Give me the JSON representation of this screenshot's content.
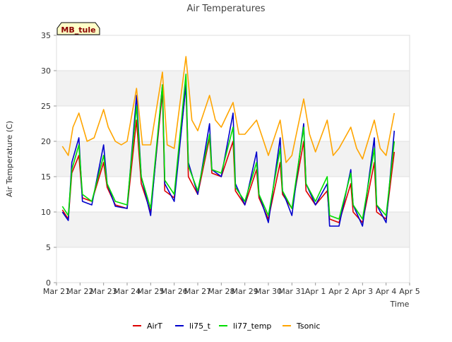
{
  "chart_data": {
    "type": "line",
    "title": "Air Temperatures",
    "xlabel": "Time",
    "ylabel": "Air Temperature (C)",
    "site_label": "MB_tule",
    "ylim": [
      0,
      35
    ],
    "yticks": [
      0,
      5,
      10,
      15,
      20,
      25,
      30,
      35
    ],
    "xlim": [
      0,
      15
    ],
    "xticks": [
      {
        "pos": 0,
        "label": "Mar 21"
      },
      {
        "pos": 1,
        "label": "Mar 22"
      },
      {
        "pos": 2,
        "label": "Mar 23"
      },
      {
        "pos": 3,
        "label": "Mar 24"
      },
      {
        "pos": 4,
        "label": "Mar 25"
      },
      {
        "pos": 5,
        "label": "Mar 26"
      },
      {
        "pos": 6,
        "label": "Mar 27"
      },
      {
        "pos": 7,
        "label": "Mar 28"
      },
      {
        "pos": 8,
        "label": "Mar 29"
      },
      {
        "pos": 9,
        "label": "Mar 30"
      },
      {
        "pos": 10,
        "label": "Mar 31"
      },
      {
        "pos": 11,
        "label": "Apr 1"
      },
      {
        "pos": 12,
        "label": "Apr 2"
      },
      {
        "pos": 13,
        "label": "Apr 3"
      },
      {
        "pos": 14,
        "label": "Apr 4"
      },
      {
        "pos": 15,
        "label": "Apr 5"
      }
    ],
    "grid": true,
    "legend_position": "bottom",
    "x_units": "days after Mar 21 00:00",
    "series": [
      {
        "name": "AirT",
        "color": "#dd0000",
        "x": [
          0.25,
          0.5,
          0.65,
          0.95,
          1.1,
          1.5,
          2.0,
          2.15,
          2.5,
          3.0,
          3.4,
          3.6,
          4.0,
          4.5,
          4.6,
          5.0,
          5.5,
          5.6,
          6.0,
          6.5,
          6.6,
          7.0,
          7.5,
          7.6,
          8.0,
          8.5,
          8.6,
          9.0,
          9.5,
          9.6,
          10.0,
          10.5,
          10.6,
          11.0,
          11.5,
          11.6,
          12.0,
          12.5,
          12.6,
          13.0,
          13.5,
          13.6,
          14.0,
          14.35
        ],
        "y": [
          10.3,
          9.0,
          15.5,
          18.0,
          12.0,
          11.5,
          17.0,
          13.5,
          11.0,
          10.5,
          23.0,
          14.0,
          10.0,
          27.0,
          13.0,
          12.0,
          28.0,
          15.0,
          12.5,
          20.5,
          15.5,
          15.0,
          20.0,
          13.0,
          11.0,
          16.0,
          12.0,
          9.0,
          17.0,
          12.5,
          10.5,
          20.0,
          13.0,
          11.0,
          13.0,
          9.0,
          8.5,
          14.0,
          10.0,
          8.5,
          17.0,
          10.0,
          9.0,
          18.5
        ]
      },
      {
        "name": "li75_t",
        "color": "#0000cc",
        "x": [
          0.25,
          0.5,
          0.65,
          0.95,
          1.1,
          1.5,
          2.0,
          2.15,
          2.5,
          3.0,
          3.4,
          3.6,
          4.0,
          4.5,
          4.6,
          5.0,
          5.5,
          5.6,
          6.0,
          6.5,
          6.6,
          7.0,
          7.5,
          7.6,
          8.0,
          8.5,
          8.6,
          9.0,
          9.5,
          9.6,
          10.0,
          10.5,
          10.6,
          11.0,
          11.5,
          11.6,
          12.0,
          12.5,
          12.6,
          13.0,
          13.5,
          13.6,
          14.0,
          14.35
        ],
        "y": [
          10.0,
          8.8,
          17.0,
          20.5,
          11.5,
          11.0,
          19.5,
          14.0,
          10.8,
          10.5,
          26.5,
          15.0,
          9.5,
          28.0,
          14.0,
          11.5,
          28.0,
          17.0,
          12.5,
          22.5,
          16.0,
          15.0,
          24.0,
          14.0,
          11.0,
          18.5,
          12.5,
          8.5,
          20.5,
          13.0,
          9.5,
          22.5,
          14.0,
          11.0,
          14.0,
          8.0,
          8.0,
          16.0,
          11.0,
          8.0,
          20.5,
          11.0,
          8.5,
          21.5
        ]
      },
      {
        "name": "li77_temp",
        "color": "#00dd00",
        "x": [
          0.25,
          0.5,
          0.65,
          0.95,
          1.1,
          1.5,
          2.0,
          2.15,
          2.5,
          3.0,
          3.4,
          3.6,
          4.0,
          4.5,
          4.6,
          5.0,
          5.5,
          5.6,
          6.0,
          6.5,
          6.6,
          7.0,
          7.5,
          7.6,
          8.0,
          8.5,
          8.6,
          9.0,
          9.5,
          9.6,
          10.0,
          10.5,
          10.6,
          11.0,
          11.5,
          11.6,
          12.0,
          12.5,
          12.6,
          13.0,
          13.5,
          13.6,
          14.0,
          14.35
        ],
        "y": [
          10.8,
          9.5,
          16.0,
          19.5,
          12.5,
          11.5,
          18.0,
          14.0,
          11.5,
          11.0,
          25.0,
          15.0,
          10.5,
          28.0,
          14.5,
          12.5,
          29.5,
          16.5,
          13.0,
          21.0,
          16.0,
          15.5,
          22.0,
          13.5,
          11.5,
          17.0,
          12.5,
          9.5,
          19.0,
          13.0,
          10.5,
          22.0,
          14.0,
          11.5,
          15.0,
          9.5,
          9.0,
          15.5,
          11.0,
          9.0,
          19.0,
          11.0,
          9.5,
          20.0
        ]
      },
      {
        "name": "Tsonic",
        "color": "#ffa500",
        "x": [
          0.25,
          0.5,
          0.7,
          0.95,
          1.3,
          1.6,
          2.0,
          2.2,
          2.5,
          2.75,
          3.0,
          3.4,
          3.65,
          4.0,
          4.5,
          4.7,
          5.0,
          5.5,
          5.75,
          6.0,
          6.5,
          6.75,
          7.0,
          7.5,
          7.75,
          8.0,
          8.5,
          8.75,
          9.0,
          9.5,
          9.75,
          10.0,
          10.5,
          10.75,
          11.0,
          11.5,
          11.75,
          12.0,
          12.5,
          12.75,
          13.0,
          13.5,
          13.75,
          14.0,
          14.35
        ],
        "y": [
          19.3,
          18.0,
          22.0,
          24.0,
          20.0,
          20.5,
          24.5,
          22.0,
          20.0,
          19.5,
          20.0,
          27.5,
          19.5,
          19.5,
          29.8,
          19.5,
          19.0,
          32.0,
          23.0,
          21.5,
          26.5,
          23.0,
          22.0,
          25.5,
          21.0,
          21.0,
          23.0,
          20.5,
          18.0,
          23.0,
          17.0,
          18.0,
          26.0,
          21.0,
          18.5,
          23.0,
          18.0,
          19.0,
          22.0,
          19.0,
          17.5,
          23.0,
          19.0,
          18.0,
          24.0
        ]
      }
    ]
  }
}
